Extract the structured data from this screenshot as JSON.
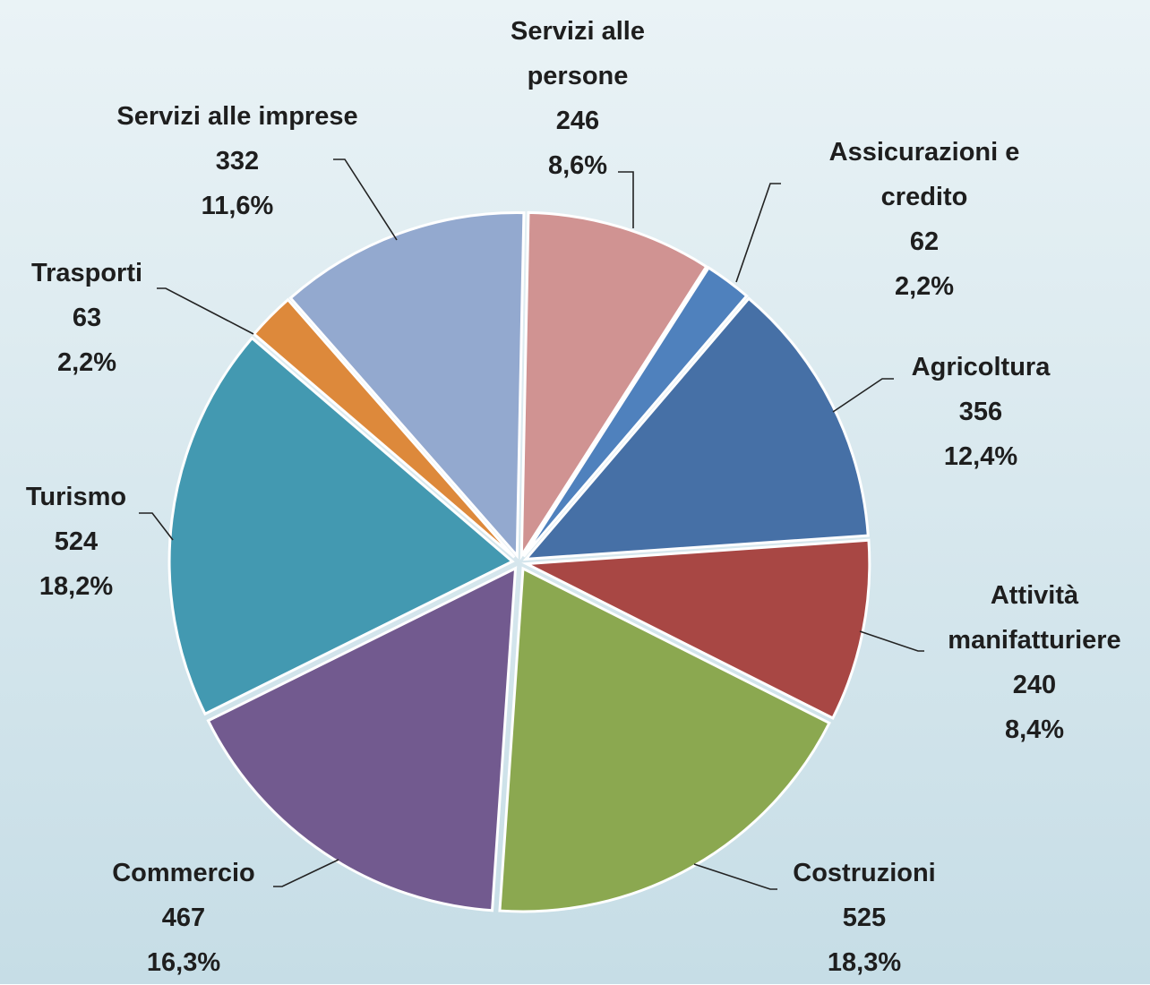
{
  "chart_data": {
    "type": "pie",
    "categories": [
      "Servizi alle persone",
      "Assicurazioni e credito",
      "Agricoltura",
      "Attività manifatturiere",
      "Costruzioni",
      "Commercio",
      "Turismo",
      "Trasporti",
      "Servizi alle imprese"
    ],
    "values": [
      246,
      62,
      356,
      240,
      525,
      467,
      524,
      63,
      332
    ],
    "percent_labels": [
      "8,6%",
      "2,2%",
      "12,4%",
      "8,4%",
      "18,3%",
      "16,3%",
      "18,2%",
      "2,2%",
      "11,6%"
    ],
    "colors": [
      "#d09392",
      "#4f81bd",
      "#4670a6",
      "#a84744",
      "#8ba850",
      "#725a8f",
      "#4399b1",
      "#dd893b",
      "#93a9cf"
    ]
  }
}
